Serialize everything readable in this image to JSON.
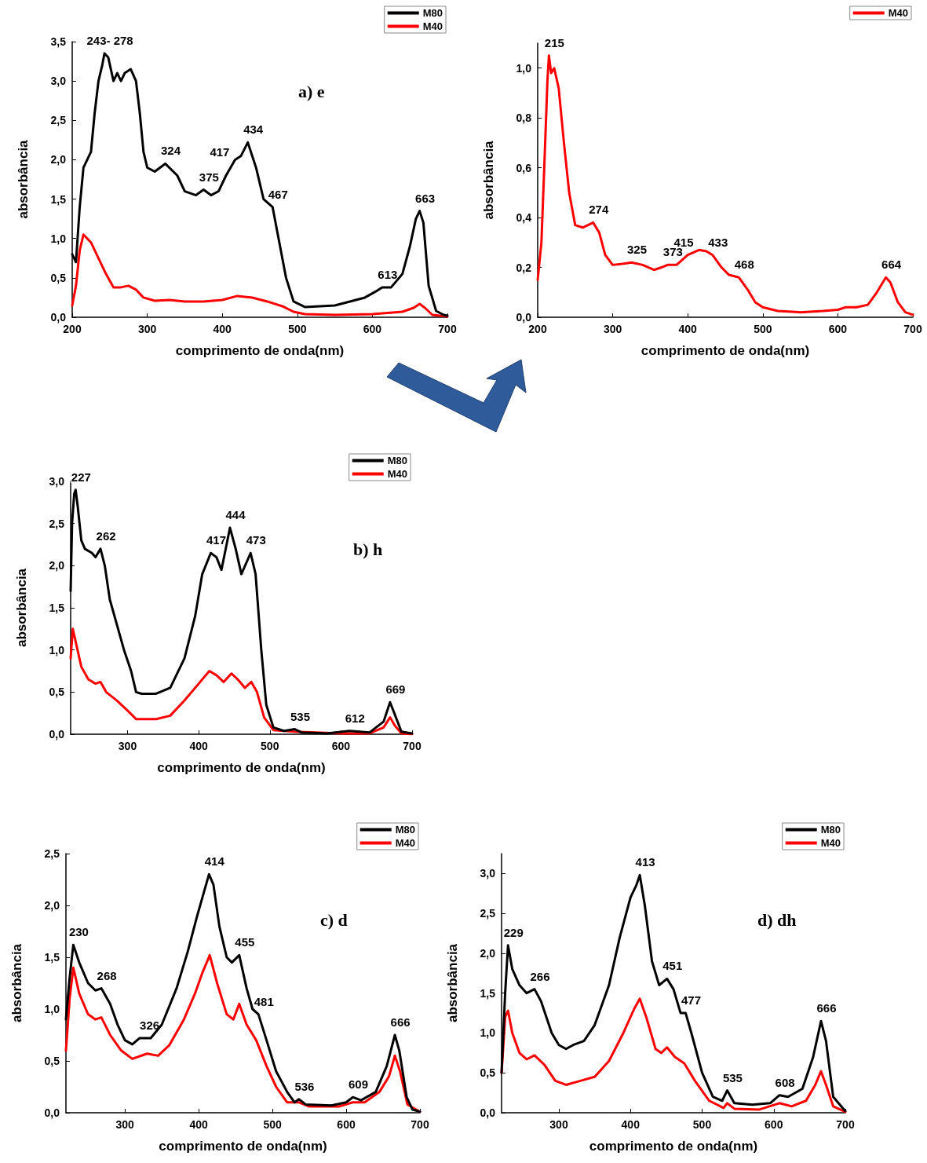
{
  "chart_data": [
    {
      "type": "line",
      "title": "a) e",
      "xlabel": "comprimento de onda(nm)",
      "ylabel": "absorbância",
      "xlim": [
        200,
        700
      ],
      "xticks": [
        200,
        300,
        400,
        500,
        600,
        700
      ],
      "ylim": [
        0,
        3.5
      ],
      "yticks": [
        {
          "value": 0,
          "label": "0,0"
        },
        {
          "value": 0.5,
          "label": "0,5"
        },
        {
          "value": 1,
          "label": "1,0"
        },
        {
          "value": 1.5,
          "label": "1,5"
        },
        {
          "value": 2,
          "label": "2,0"
        },
        {
          "value": 2.5,
          "label": "2,5"
        },
        {
          "value": 3,
          "label": "3,0"
        },
        {
          "value": 3.5,
          "label": "3,5"
        }
      ],
      "legend": "top right",
      "marker": "none",
      "line_style": "solid",
      "series": [
        {
          "name": "M80",
          "color": "#000000",
          "x": [
            200,
            205,
            210,
            215,
            220,
            225,
            230,
            235,
            240,
            243,
            248,
            255,
            260,
            265,
            270,
            278,
            285,
            290,
            295,
            300,
            310,
            324,
            340,
            350,
            365,
            375,
            385,
            395,
            405,
            417,
            425,
            434,
            445,
            455,
            467,
            475,
            485,
            495,
            510,
            530,
            550,
            570,
            590,
            605,
            613,
            625,
            640,
            650,
            658,
            663,
            668,
            675,
            685,
            695,
            700
          ],
          "values": [
            0.8,
            0.7,
            1.4,
            1.9,
            2.0,
            2.1,
            2.6,
            3.0,
            3.2,
            3.35,
            3.3,
            3.0,
            3.1,
            3.0,
            3.1,
            3.15,
            3.0,
            2.6,
            2.1,
            1.9,
            1.85,
            1.95,
            1.8,
            1.6,
            1.55,
            1.62,
            1.55,
            1.6,
            1.8,
            2.0,
            2.05,
            2.22,
            1.9,
            1.5,
            1.4,
            1.0,
            0.5,
            0.2,
            0.13,
            0.14,
            0.15,
            0.2,
            0.25,
            0.33,
            0.38,
            0.38,
            0.55,
            0.9,
            1.25,
            1.35,
            1.2,
            0.4,
            0.08,
            0.03,
            0.02
          ]
        },
        {
          "name": "M40",
          "color": "#ff0000",
          "x": [
            200,
            205,
            210,
            215,
            225,
            235,
            245,
            255,
            265,
            275,
            285,
            295,
            310,
            330,
            350,
            375,
            400,
            420,
            440,
            460,
            480,
            495,
            510,
            550,
            600,
            640,
            655,
            663,
            670,
            680,
            700
          ],
          "values": [
            0.15,
            0.4,
            0.85,
            1.05,
            0.95,
            0.75,
            0.55,
            0.38,
            0.38,
            0.4,
            0.35,
            0.25,
            0.21,
            0.22,
            0.2,
            0.2,
            0.22,
            0.27,
            0.25,
            0.2,
            0.14,
            0.07,
            0.04,
            0.03,
            0.04,
            0.07,
            0.12,
            0.17,
            0.12,
            0.03,
            0.01
          ]
        }
      ],
      "annotations": [
        {
          "text": "243- 278",
          "x": 243,
          "y": 3.35
        },
        {
          "text": "324",
          "x": 324,
          "y": 1.95
        },
        {
          "text": "375",
          "x": 375,
          "y": 1.62
        },
        {
          "text": "417",
          "x": 417,
          "y": 2.0
        },
        {
          "text": "434",
          "x": 434,
          "y": 2.22
        },
        {
          "text": "467",
          "x": 467,
          "y": 1.4
        },
        {
          "text": "613",
          "x": 613,
          "y": 0.38
        },
        {
          "text": "663",
          "x": 663,
          "y": 1.35
        }
      ]
    },
    {
      "type": "line",
      "xlabel": "comprimento de onda(nm)",
      "ylabel": "absorbância",
      "xlim": [
        200,
        700
      ],
      "xticks": [
        200,
        300,
        400,
        500,
        600,
        700
      ],
      "ylim": [
        0,
        1.1
      ],
      "yticks": [
        {
          "value": 0,
          "label": "0,0"
        },
        {
          "value": 0.2,
          "label": "0,2"
        },
        {
          "value": 0.4,
          "label": "0,4"
        },
        {
          "value": 0.6,
          "label": "0,6"
        },
        {
          "value": 0.8,
          "label": "0,8"
        },
        {
          "value": 1,
          "label": "1,0"
        }
      ],
      "legend": "top right",
      "marker": "none",
      "line_style": "solid",
      "series": [
        {
          "name": "M40",
          "color": "#ff0000",
          "x": [
            200,
            205,
            210,
            213,
            215,
            218,
            222,
            228,
            235,
            242,
            250,
            260,
            274,
            282,
            290,
            300,
            315,
            325,
            340,
            355,
            365,
            373,
            385,
            400,
            415,
            425,
            433,
            445,
            455,
            468,
            480,
            490,
            500,
            520,
            550,
            580,
            600,
            610,
            625,
            640,
            652,
            664,
            670,
            680,
            690,
            700
          ],
          "values": [
            0.15,
            0.3,
            0.7,
            0.95,
            1.05,
            0.98,
            1.0,
            0.92,
            0.7,
            0.5,
            0.37,
            0.36,
            0.38,
            0.34,
            0.25,
            0.21,
            0.215,
            0.22,
            0.21,
            0.19,
            0.2,
            0.21,
            0.21,
            0.25,
            0.27,
            0.265,
            0.25,
            0.2,
            0.17,
            0.16,
            0.11,
            0.06,
            0.04,
            0.025,
            0.02,
            0.025,
            0.03,
            0.04,
            0.04,
            0.05,
            0.1,
            0.16,
            0.14,
            0.06,
            0.02,
            0.01
          ]
        }
      ],
      "annotations": [
        {
          "text": "215",
          "x": 215,
          "y": 1.05
        },
        {
          "text": "274",
          "x": 274,
          "y": 0.38
        },
        {
          "text": "325",
          "x": 325,
          "y": 0.22
        },
        {
          "text": "373",
          "x": 373,
          "y": 0.21
        },
        {
          "text": "415",
          "x": 415,
          "y": 0.27
        },
        {
          "text": "433",
          "x": 433,
          "y": 0.25
        },
        {
          "text": "468",
          "x": 468,
          "y": 0.16
        },
        {
          "text": "664",
          "x": 664,
          "y": 0.16
        }
      ]
    },
    {
      "type": "line",
      "title": "b) h",
      "xlabel": "comprimento de onda(nm)",
      "ylabel": "absorbância",
      "xlim": [
        220,
        700
      ],
      "xticks": [
        300,
        400,
        500,
        600,
        700
      ],
      "ylim": [
        0,
        3
      ],
      "yticks": [
        {
          "value": 0,
          "label": "0,0"
        },
        {
          "value": 0.5,
          "label": "0,5"
        },
        {
          "value": 1,
          "label": "1,0"
        },
        {
          "value": 1.5,
          "label": "1,5"
        },
        {
          "value": 2,
          "label": "2,0"
        },
        {
          "value": 2.5,
          "label": "2,5"
        },
        {
          "value": 3,
          "label": "3,0"
        }
      ],
      "legend": "top right",
      "marker": "none",
      "line_style": "solid",
      "series": [
        {
          "name": "M80",
          "color": "#000000",
          "x": [
            220,
            222,
            225,
            227,
            230,
            235,
            240,
            250,
            255,
            262,
            268,
            275,
            285,
            295,
            305,
            312,
            320,
            340,
            360,
            380,
            395,
            405,
            417,
            425,
            432,
            444,
            452,
            460,
            473,
            480,
            488,
            495,
            505,
            520,
            535,
            545,
            580,
            612,
            640,
            660,
            669,
            675,
            685,
            700
          ],
          "values": [
            1.7,
            2.5,
            2.85,
            2.9,
            2.7,
            2.3,
            2.2,
            2.15,
            2.1,
            2.2,
            2.0,
            1.6,
            1.3,
            1.0,
            0.75,
            0.5,
            0.48,
            0.48,
            0.55,
            0.9,
            1.4,
            1.9,
            2.15,
            2.1,
            1.95,
            2.45,
            2.2,
            1.9,
            2.15,
            1.9,
            1.0,
            0.35,
            0.08,
            0.04,
            0.06,
            0.02,
            0.01,
            0.04,
            0.02,
            0.15,
            0.38,
            0.25,
            0.03,
            0.01
          ]
        },
        {
          "name": "M40",
          "color": "#ff0000",
          "x": [
            220,
            223,
            227,
            235,
            245,
            255,
            262,
            270,
            285,
            300,
            312,
            340,
            360,
            380,
            400,
            415,
            425,
            435,
            446,
            455,
            465,
            474,
            482,
            492,
            505,
            535,
            600,
            640,
            660,
            669,
            676,
            685,
            700
          ],
          "values": [
            0.9,
            1.25,
            1.1,
            0.8,
            0.65,
            0.6,
            0.62,
            0.5,
            0.4,
            0.28,
            0.18,
            0.18,
            0.22,
            0.4,
            0.6,
            0.75,
            0.7,
            0.62,
            0.72,
            0.65,
            0.55,
            0.62,
            0.5,
            0.2,
            0.05,
            0.03,
            0.01,
            0.01,
            0.08,
            0.2,
            0.1,
            0.01,
            0
          ]
        }
      ],
      "annotations": [
        {
          "text": "227",
          "x": 227,
          "y": 2.9
        },
        {
          "text": "262",
          "x": 262,
          "y": 2.2
        },
        {
          "text": "417",
          "x": 417,
          "y": 2.15
        },
        {
          "text": "444",
          "x": 444,
          "y": 2.45
        },
        {
          "text": "473",
          "x": 473,
          "y": 2.15
        },
        {
          "text": "535",
          "x": 535,
          "y": 0.06
        },
        {
          "text": "612",
          "x": 612,
          "y": 0.04
        },
        {
          "text": "669",
          "x": 669,
          "y": 0.38
        }
      ]
    },
    {
      "type": "line",
      "title": "c) d",
      "xlabel": "comprimento de onda(nm)",
      "ylabel": "absorbância",
      "xlim": [
        220,
        700
      ],
      "xticks": [
        300,
        400,
        500,
        600,
        700
      ],
      "ylim": [
        0,
        2.5
      ],
      "yticks": [
        {
          "value": 0,
          "label": "0,0"
        },
        {
          "value": 0.5,
          "label": "0,5"
        },
        {
          "value": 1,
          "label": "1,0"
        },
        {
          "value": 1.5,
          "label": "1,5"
        },
        {
          "value": 2,
          "label": "2,0"
        },
        {
          "value": 2.5,
          "label": "2,5"
        }
      ],
      "legend": "top right",
      "marker": "none",
      "line_style": "solid",
      "series": [
        {
          "name": "M80",
          "color": "#000000",
          "x": [
            220,
            225,
            230,
            238,
            250,
            260,
            268,
            280,
            290,
            300,
            310,
            320,
            335,
            350,
            370,
            385,
            398,
            408,
            414,
            420,
            428,
            438,
            445,
            455,
            465,
            473,
            481,
            492,
            505,
            520,
            530,
            536,
            545,
            580,
            600,
            609,
            620,
            640,
            655,
            666,
            672,
            682,
            690,
            700
          ],
          "values": [
            0.9,
            1.3,
            1.62,
            1.45,
            1.25,
            1.18,
            1.2,
            1.05,
            0.85,
            0.7,
            0.66,
            0.72,
            0.72,
            0.85,
            1.2,
            1.55,
            1.9,
            2.15,
            2.3,
            2.2,
            1.8,
            1.5,
            1.45,
            1.52,
            1.2,
            1.0,
            0.95,
            0.7,
            0.4,
            0.2,
            0.1,
            0.13,
            0.08,
            0.07,
            0.1,
            0.15,
            0.12,
            0.2,
            0.45,
            0.75,
            0.6,
            0.15,
            0.03,
            0.01
          ]
        },
        {
          "name": "M40",
          "color": "#ff0000",
          "x": [
            220,
            225,
            230,
            238,
            250,
            260,
            268,
            280,
            295,
            310,
            330,
            345,
            360,
            380,
            395,
            405,
            415,
            425,
            438,
            447,
            455,
            465,
            478,
            492,
            505,
            520,
            536,
            550,
            590,
            609,
            625,
            645,
            658,
            666,
            673,
            683,
            700
          ],
          "values": [
            0.6,
            1.1,
            1.4,
            1.15,
            0.95,
            0.9,
            0.92,
            0.75,
            0.6,
            0.52,
            0.57,
            0.55,
            0.65,
            0.9,
            1.15,
            1.35,
            1.52,
            1.25,
            0.95,
            0.9,
            1.05,
            0.85,
            0.7,
            0.45,
            0.25,
            0.1,
            0.1,
            0.06,
            0.06,
            0.1,
            0.1,
            0.2,
            0.35,
            0.55,
            0.4,
            0.08,
            0.01
          ]
        }
      ],
      "annotations": [
        {
          "text": "230",
          "x": 230,
          "y": 1.62
        },
        {
          "text": "268",
          "x": 268,
          "y": 1.2
        },
        {
          "text": "326",
          "x": 326,
          "y": 0.72
        },
        {
          "text": "414",
          "x": 414,
          "y": 2.3
        },
        {
          "text": "455",
          "x": 455,
          "y": 1.52
        },
        {
          "text": "481",
          "x": 481,
          "y": 0.95
        },
        {
          "text": "536",
          "x": 536,
          "y": 0.13
        },
        {
          "text": "609",
          "x": 609,
          "y": 0.15
        },
        {
          "text": "666",
          "x": 666,
          "y": 0.75
        }
      ]
    },
    {
      "type": "line",
      "title": "d) dh",
      "xlabel": "comprimento de onda(nm)",
      "ylabel": "absorbância",
      "xlim": [
        220,
        700
      ],
      "xticks": [
        300,
        400,
        500,
        600,
        700
      ],
      "ylim": [
        0,
        3.25
      ],
      "yticks": [
        {
          "value": 0,
          "label": "0,0"
        },
        {
          "value": 0.5,
          "label": "0,5"
        },
        {
          "value": 1,
          "label": "1,0"
        },
        {
          "value": 1.5,
          "label": "1,5"
        },
        {
          "value": 2,
          "label": "2,0"
        },
        {
          "value": 2.5,
          "label": "2,5"
        },
        {
          "value": 3,
          "label": "3,0"
        }
      ],
      "legend": "top right",
      "marker": "none",
      "line_style": "solid",
      "series": [
        {
          "name": "M80",
          "color": "#000000",
          "x": [
            220,
            225,
            229,
            235,
            245,
            255,
            266,
            275,
            290,
            300,
            310,
            320,
            335,
            350,
            370,
            385,
            400,
            408,
            413,
            420,
            430,
            440,
            451,
            460,
            470,
            477,
            485,
            500,
            515,
            528,
            535,
            545,
            570,
            595,
            608,
            620,
            640,
            655,
            666,
            673,
            683,
            700
          ],
          "values": [
            0.5,
            1.5,
            2.1,
            1.8,
            1.6,
            1.5,
            1.55,
            1.4,
            1.0,
            0.85,
            0.8,
            0.85,
            0.9,
            1.1,
            1.6,
            2.2,
            2.7,
            2.85,
            2.98,
            2.6,
            1.9,
            1.6,
            1.68,
            1.55,
            1.25,
            1.25,
            1.0,
            0.5,
            0.2,
            0.15,
            0.28,
            0.12,
            0.1,
            0.12,
            0.22,
            0.2,
            0.3,
            0.7,
            1.15,
            0.9,
            0.2,
            0.02
          ]
        },
        {
          "name": "M40",
          "color": "#ff0000",
          "x": [
            220,
            225,
            229,
            235,
            245,
            255,
            266,
            280,
            295,
            310,
            330,
            350,
            370,
            390,
            405,
            413,
            422,
            435,
            443,
            451,
            462,
            475,
            490,
            510,
            530,
            535,
            545,
            580,
            608,
            625,
            645,
            658,
            666,
            673,
            683,
            700
          ],
          "values": [
            0.5,
            1.2,
            1.28,
            1.0,
            0.75,
            0.67,
            0.72,
            0.6,
            0.4,
            0.35,
            0.4,
            0.45,
            0.65,
            1.0,
            1.3,
            1.43,
            1.2,
            0.8,
            0.75,
            0.82,
            0.7,
            0.62,
            0.4,
            0.15,
            0.06,
            0.12,
            0.05,
            0.04,
            0.12,
            0.08,
            0.15,
            0.35,
            0.52,
            0.35,
            0.08,
            0.01
          ]
        }
      ],
      "annotations": [
        {
          "text": "229",
          "x": 229,
          "y": 2.1
        },
        {
          "text": "266",
          "x": 266,
          "y": 1.55
        },
        {
          "text": "413",
          "x": 413,
          "y": 2.98
        },
        {
          "text": "451",
          "x": 451,
          "y": 1.68
        },
        {
          "text": "477",
          "x": 477,
          "y": 1.25
        },
        {
          "text": "535",
          "x": 535,
          "y": 0.28
        },
        {
          "text": "608",
          "x": 608,
          "y": 0.22
        },
        {
          "text": "666",
          "x": 666,
          "y": 1.15
        }
      ]
    }
  ]
}
